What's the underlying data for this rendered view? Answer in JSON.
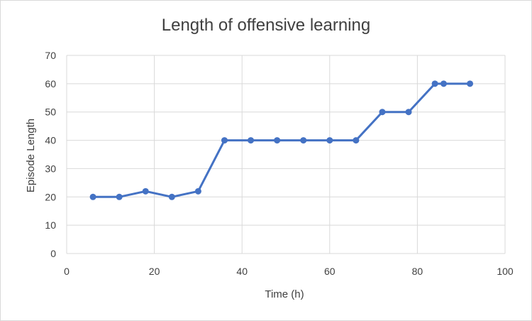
{
  "chart_data": {
    "type": "line",
    "title": "Length of offensive learning",
    "xlabel": "Time (h)",
    "ylabel": "Episode Length",
    "xlim": [
      0,
      100
    ],
    "ylim": [
      0,
      70
    ],
    "x_ticks": [
      0,
      20,
      40,
      60,
      80,
      100
    ],
    "y_ticks": [
      0,
      10,
      20,
      30,
      40,
      50,
      60,
      70
    ],
    "grid": true,
    "legend": "none",
    "series": [
      {
        "color": "#4472c4",
        "points": [
          {
            "x": 6,
            "y": 20
          },
          {
            "x": 12,
            "y": 20
          },
          {
            "x": 18,
            "y": 22
          },
          {
            "x": 24,
            "y": 20
          },
          {
            "x": 30,
            "y": 22
          },
          {
            "x": 36,
            "y": 40
          },
          {
            "x": 42,
            "y": 40
          },
          {
            "x": 48,
            "y": 40
          },
          {
            "x": 54,
            "y": 40
          },
          {
            "x": 60,
            "y": 40
          },
          {
            "x": 66,
            "y": 40
          },
          {
            "x": 72,
            "y": 50
          },
          {
            "x": 78,
            "y": 50
          },
          {
            "x": 84,
            "y": 60
          },
          {
            "x": 86,
            "y": 60
          },
          {
            "x": 92,
            "y": 60
          }
        ]
      }
    ]
  }
}
